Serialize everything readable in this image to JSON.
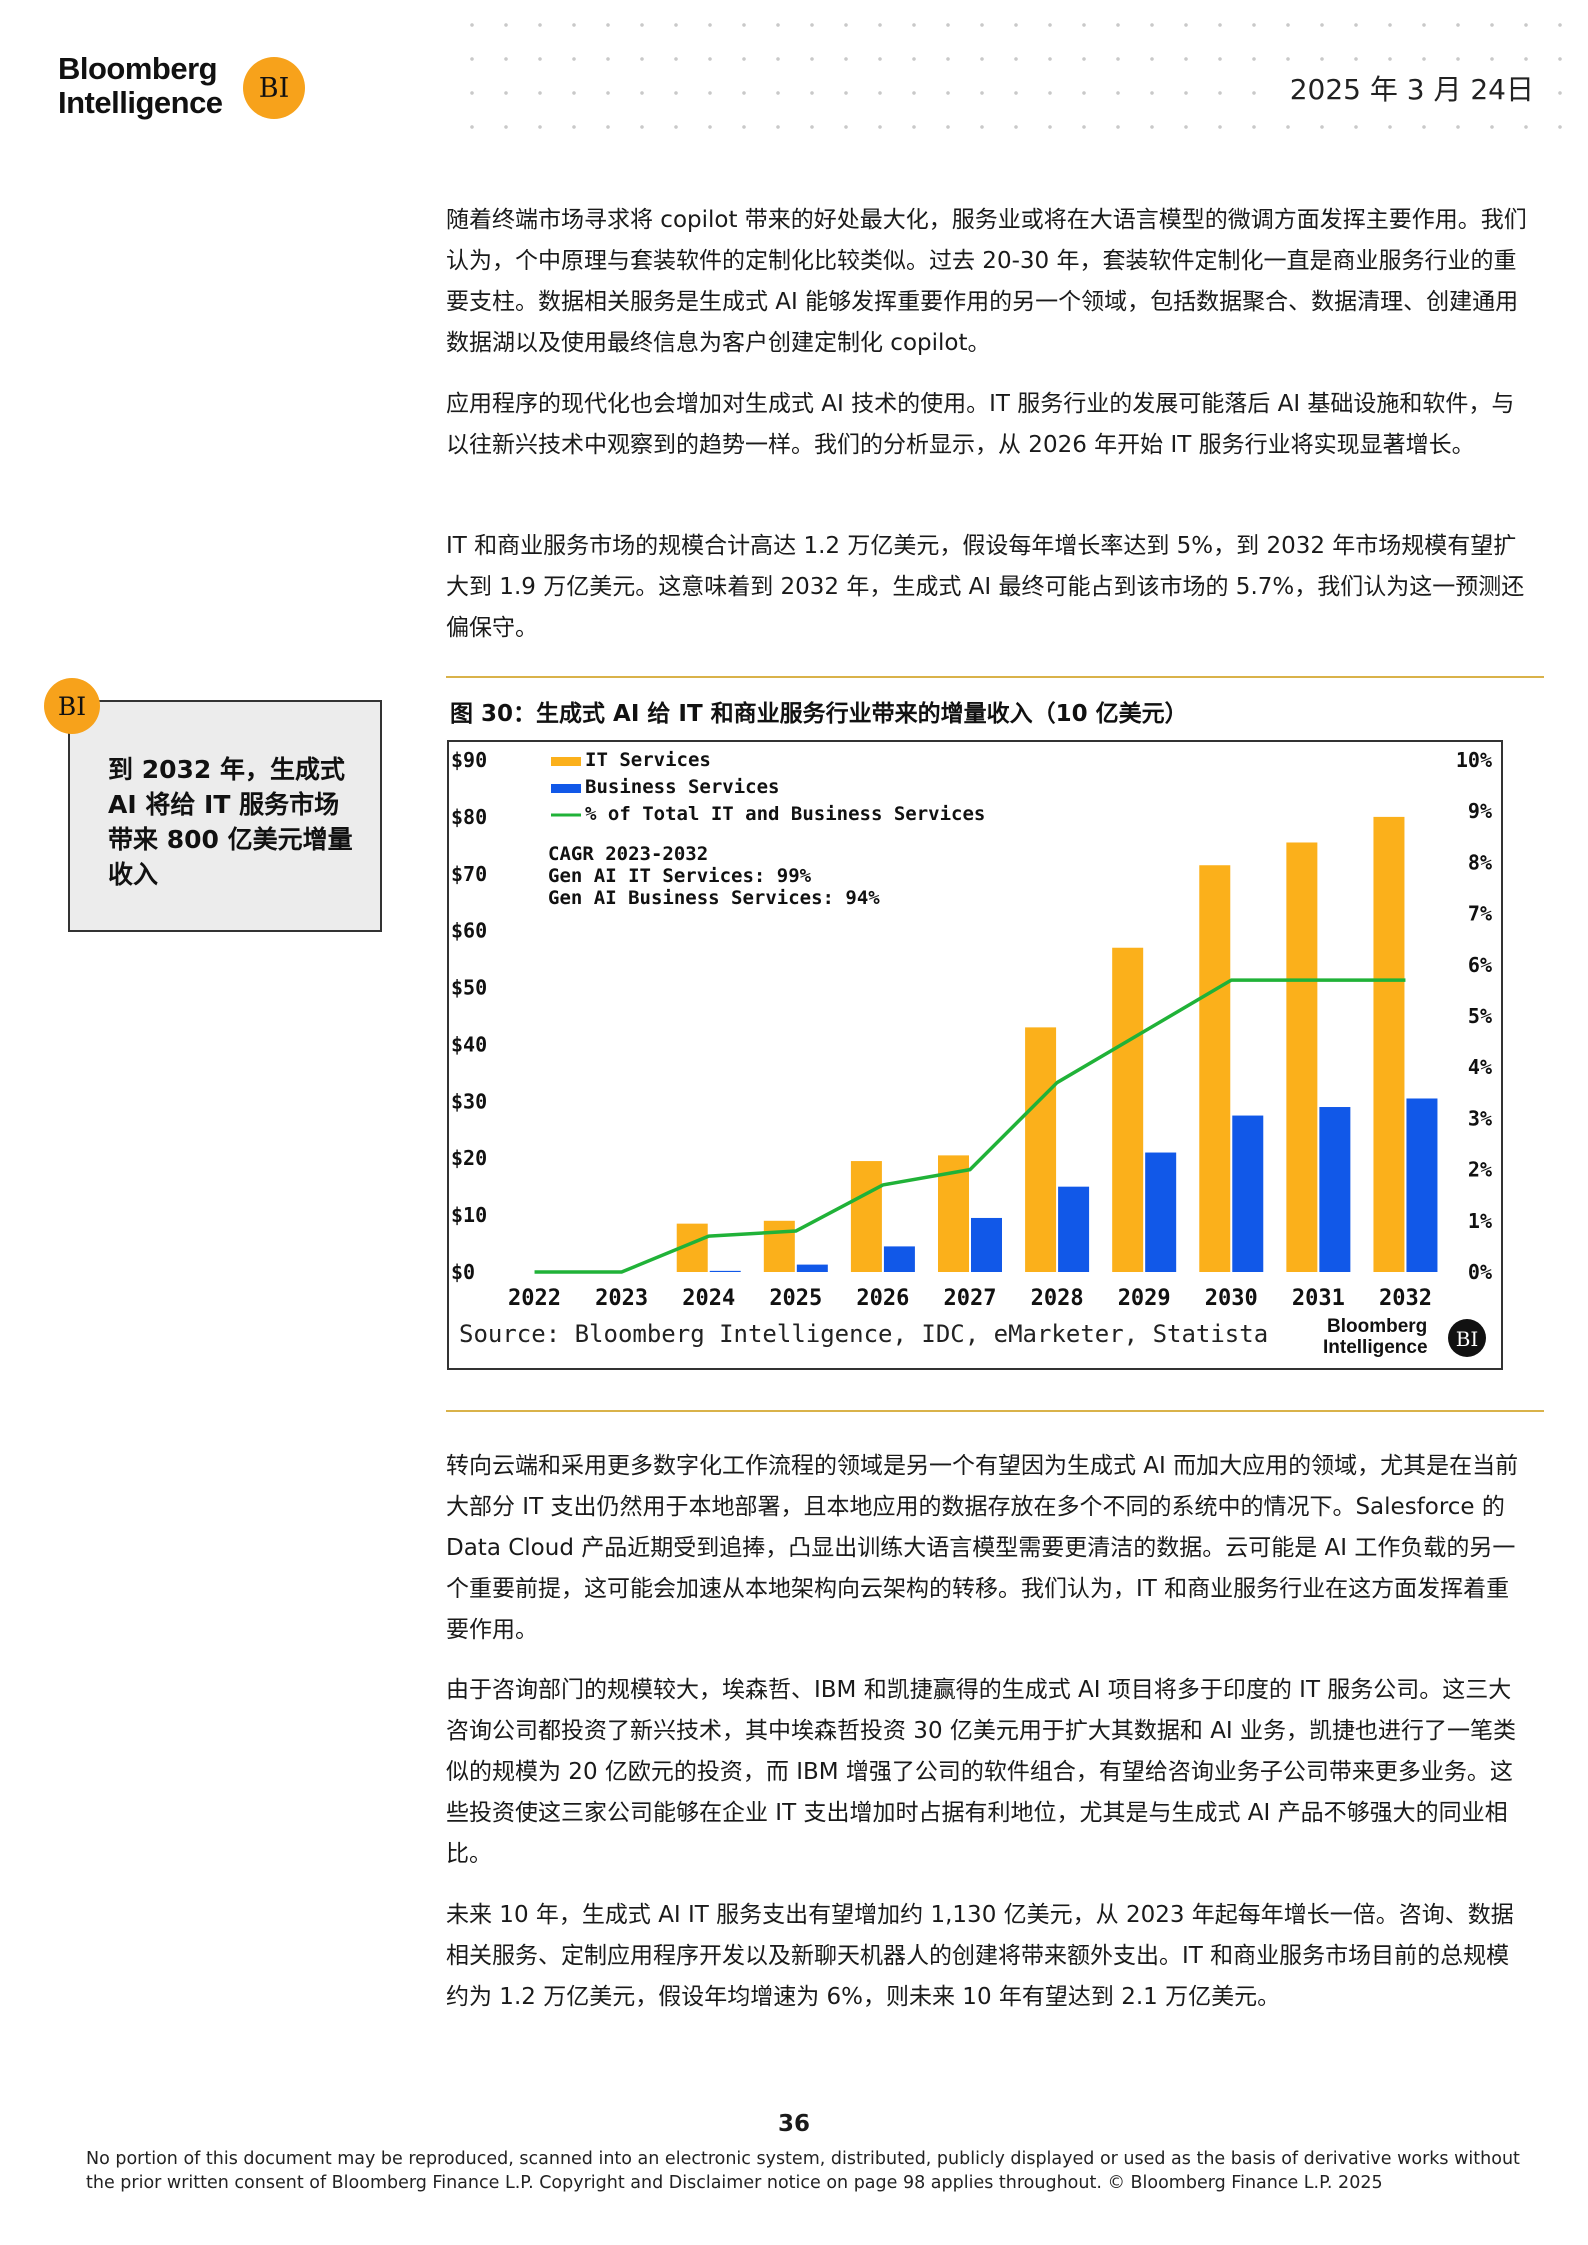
{
  "header": {
    "logo_line1": "Bloomberg",
    "logo_line2": "Intelligence",
    "logo_badge": "BI",
    "date": "2025 年 3 月 24日"
  },
  "paragraphs": [
    "随着终端市场寻求将 copilot 带来的好处最大化，服务业或将在大语言模型的微调方面发挥主要作用。我们认为，个中原理与套装软件的定制化比较类似。过去 20-30 年，套装软件定制化一直是商业服务行业的重要支柱。数据相关服务是生成式 AI 能够发挥重要作用的另一个领域，包括数据聚合、数据清理、创建通用数据湖以及使用最终信息为客户创建定制化 copilot。",
    "应用程序的现代化也会增加对生成式 AI 技术的使用。IT 服务行业的发展可能落后 AI 基础设施和软件，与以往新兴技术中观察到的趋势一样。我们的分析显示，从 2026 年开始 IT 服务行业将实现显著增长。",
    "IT 和商业服务市场的规模合计高达 1.2 万亿美元，假设每年增长率达到 5%，到 2032 年市场规模有望扩大到 1.9 万亿美元。这意味着到 2032 年，生成式 AI 最终可能占到该市场的 5.7%，我们认为这一预测还偏保守。",
    "转向云端和采用更多数字化工作流程的领域是另一个有望因为生成式 AI 而加大应用的领域，尤其是在当前大部分 IT 支出仍然用于本地部署，且本地应用的数据存放在多个不同的系统中的情况下。Salesforce 的 Data Cloud 产品近期受到追捧，凸显出训练大语言模型需要更清洁的数据。云可能是 AI 工作负载的另一个重要前提，这可能会加速从本地架构向云架构的转移。我们认为，IT 和商业服务行业在这方面发挥着重要作用。",
    "由于咨询部门的规模较大，埃森哲、IBM 和凯捷赢得的生成式 AI 项目将多于印度的 IT 服务公司。这三大咨询公司都投资了新兴技术，其中埃森哲投资 30 亿美元用于扩大其数据和 AI 业务，凯捷也进行了一笔类似的规模为 20 亿欧元的投资，而 IBM 增强了公司的软件组合，有望给咨询业务子公司带来更多业务。这些投资使这三家公司能够在企业 IT 支出增加时占据有利地位，尤其是与生成式 AI 产品不够强大的同业相比。",
    "未来 10 年，生成式 AI IT 服务支出有望增加约 1,130 亿美元，从 2023 年起每年增长一倍。咨询、数据相关服务、定制应用程序开发以及新聊天机器人的创建将带来额外支出。IT 和商业服务市场目前的总规模约为 1.2 万亿美元，假设年均增速为 6%，则未来 10 年有望达到 2.1 万亿美元。"
  ],
  "callout": {
    "badge": "BI",
    "text": "到 2032 年，生成式 AI 将给 IT 服务市场带来 800 亿美元增量收入"
  },
  "figure": {
    "title": "图 30：生成式 AI 给 IT 和商业服务行业带来的增量收入（10 亿美元）",
    "source": "Source: Bloomberg Intelligence, IDC, eMarketer, Statista",
    "logo_line1": "Bloomberg",
    "logo_line2": "Intelligence",
    "logo_badge": "BI"
  },
  "chart_data": {
    "type": "bar",
    "categories": [
      "2022",
      "2023",
      "2024",
      "2025",
      "2026",
      "2027",
      "2028",
      "2029",
      "2030",
      "2031",
      "2032"
    ],
    "series": [
      {
        "name": "IT Services",
        "type": "bar",
        "axis": "left",
        "color": "#fbb01b",
        "values": [
          0,
          0,
          8.5,
          9,
          19.5,
          20.5,
          43,
          57,
          71.5,
          75.5,
          80
        ]
      },
      {
        "name": "Business Services",
        "type": "bar",
        "axis": "left",
        "color": "#1158e8",
        "values": [
          0,
          0,
          0.2,
          1.3,
          4.5,
          9.5,
          15,
          21,
          27.5,
          29,
          30.5
        ]
      },
      {
        "name": "% of Total IT and Business Services",
        "type": "line",
        "axis": "right",
        "color": "#20b238",
        "values": [
          0,
          0,
          0.7,
          0.8,
          1.7,
          2.0,
          3.7,
          4.7,
          5.7,
          5.7,
          5.7
        ]
      }
    ],
    "yticks_left": [
      "$0",
      "$10",
      "$20",
      "$30",
      "$40",
      "$50",
      "$60",
      "$70",
      "$80",
      "$90"
    ],
    "yticks_right": [
      "0%",
      "1%",
      "2%",
      "3%",
      "4%",
      "5%",
      "6%",
      "7%",
      "8%",
      "9%",
      "10%"
    ],
    "ylim_left": [
      0,
      90
    ],
    "ylim_right": [
      0,
      10
    ],
    "legend_position": "top-left",
    "grid": false,
    "annotation": [
      "CAGR 2023-2032",
      "Gen AI IT Services: 99%",
      "Gen AI Business Services: 94%"
    ]
  },
  "footer": {
    "page_number": "36",
    "disclaimer": "No portion of this document may be reproduced, scanned into an electronic system, distributed, publicly displayed or used as the basis of derivative works without the prior written consent of Bloomberg Finance L.P. Copyright and Disclaimer notice on page 98 applies throughout. © Bloomberg Finance L.P. 2025"
  }
}
